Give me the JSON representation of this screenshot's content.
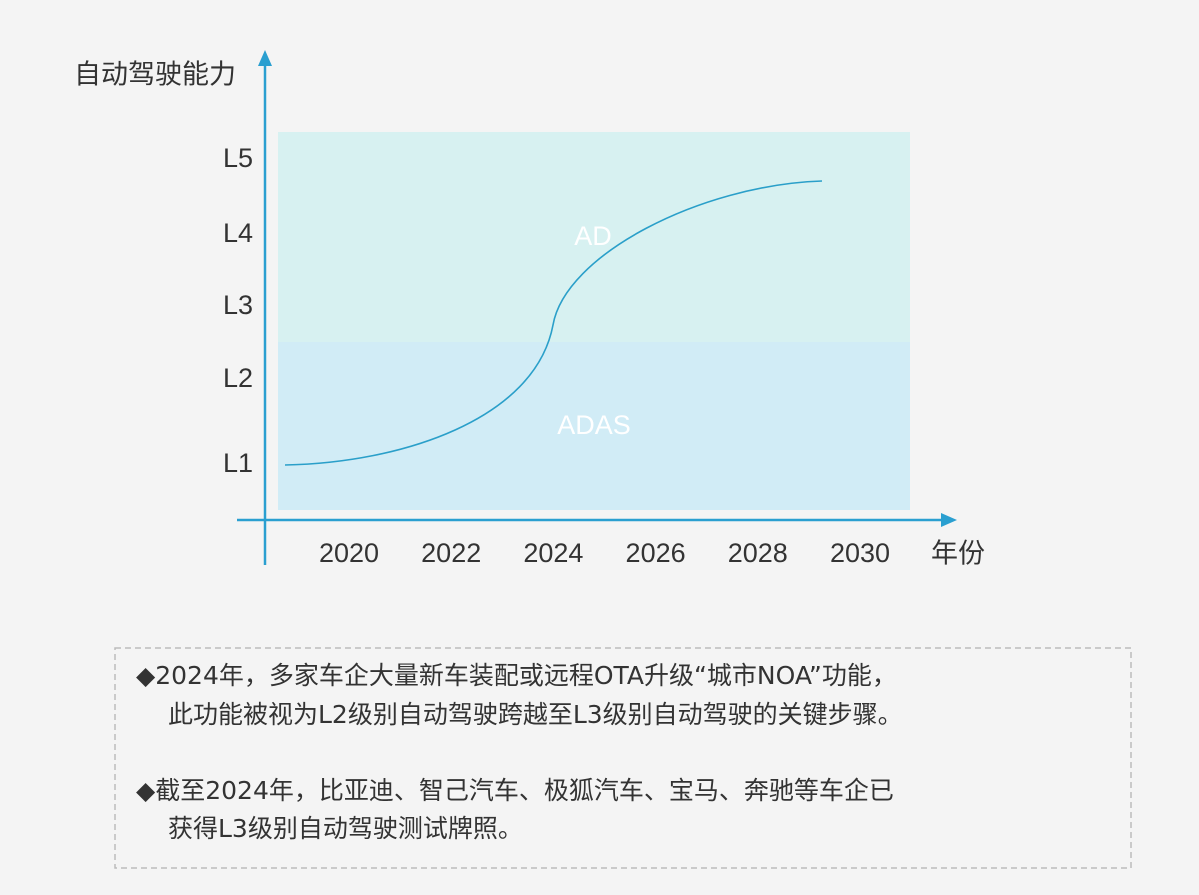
{
  "diagram": {
    "y_axis_title": "自动驾驶能力",
    "x_axis_title": "年份",
    "y_levels": [
      "L5",
      "L4",
      "L3",
      "L2",
      "L1"
    ],
    "x_years": [
      "2020",
      "2022",
      "2024",
      "2026",
      "2028",
      "2030"
    ],
    "regions": [
      "AD",
      "ADAS"
    ]
  },
  "notes": [
    {
      "lines": [
        "◆2024年，多家车企大量新车装配或远程OTA升级“城市NOA”功能，",
        "此功能被视为L2级别自动驾驶跨越至L3级别自动驾驶的关键步骤。"
      ]
    },
    {
      "lines": [
        "◆截至2024年，比亚迪、智己汽车、极狐汽车、宝马、奔驰等车企已",
        "获得L3级别自动驾驶测试牌照。"
      ]
    }
  ]
}
